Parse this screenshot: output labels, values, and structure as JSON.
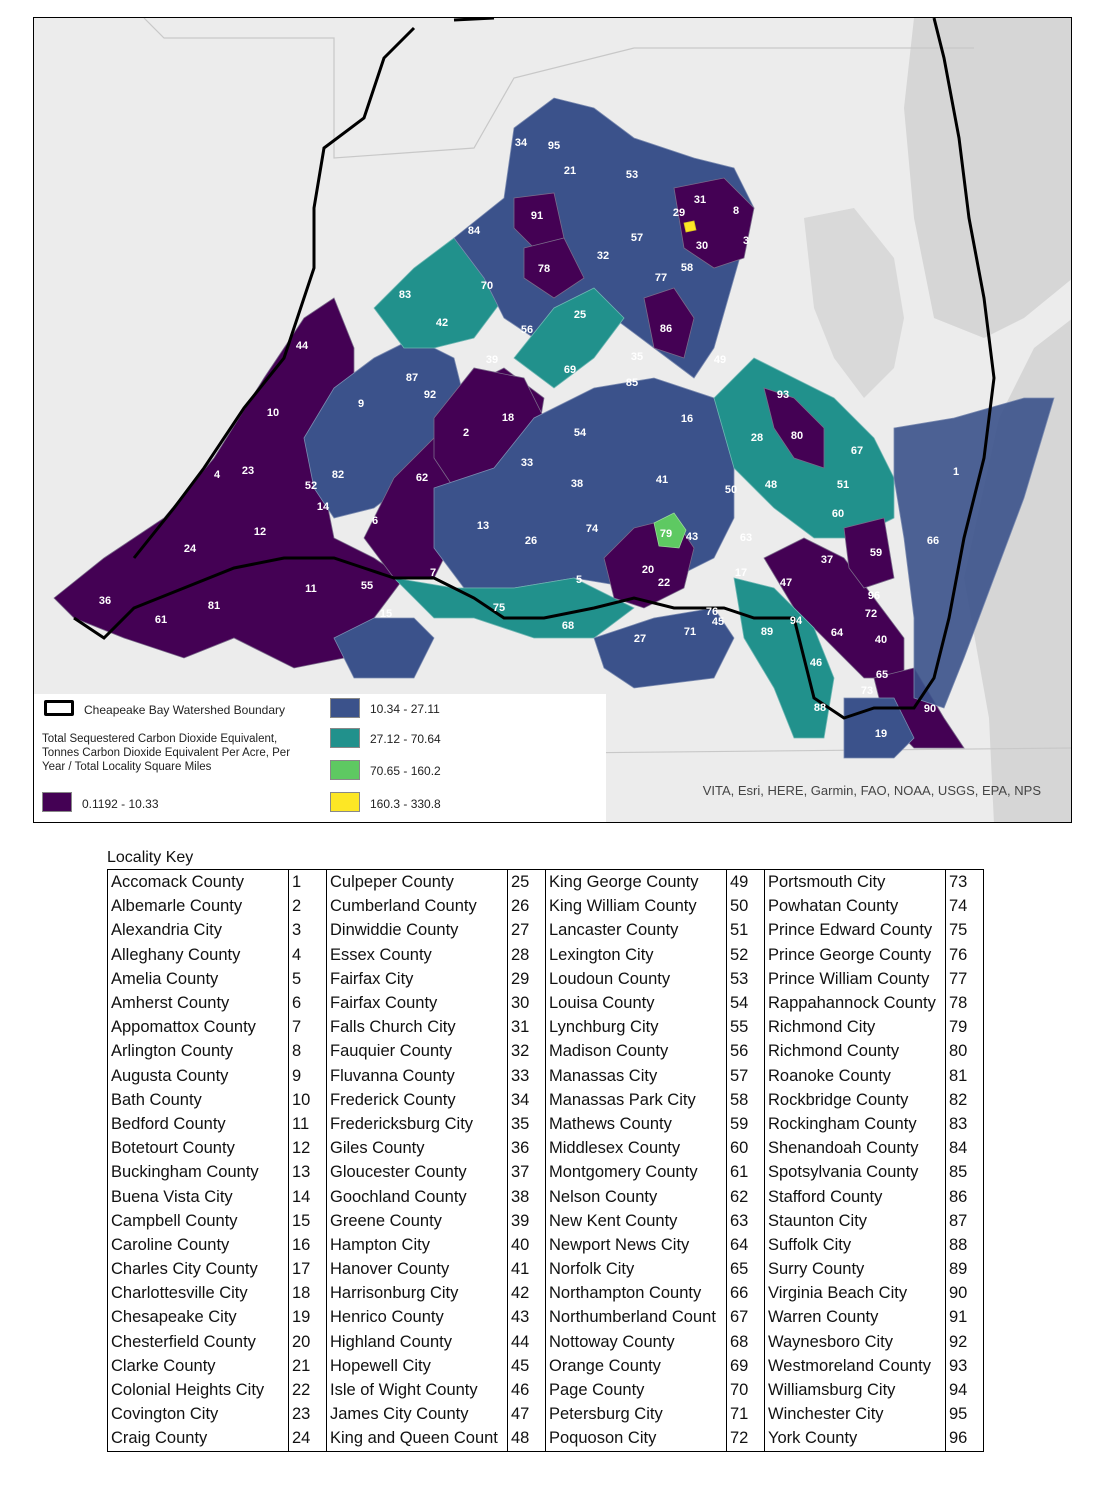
{
  "map": {
    "attribution": "VITA, Esri, HERE, Garmin, FAO, NOAA, USGS, EPA, NPS",
    "colors": {
      "class1": "#440154",
      "class2": "#3b528b",
      "class3": "#21918c",
      "class4": "#5ec962",
      "class5": "#fde725",
      "background": "#ececec",
      "water": "#d6d6d6",
      "boundary": "#000000"
    },
    "legend": {
      "boundary_label": "Cheapeake Bay Watershed Boundary",
      "measure_label": "Total Sequestered Carbon Dioxide Equivalent, Tonnes Carbon Dioxide Equivalent Per Acre, Per Year / Total Locality Square Miles",
      "classes": [
        {
          "range": "0.1192 - 10.33",
          "color": "#440154"
        },
        {
          "range": "10.34 - 27.11",
          "color": "#3b528b"
        },
        {
          "range": "27.12 - 70.64",
          "color": "#21918c"
        },
        {
          "range": "70.65 - 160.2",
          "color": "#5ec962"
        },
        {
          "range": "160.3 - 330.8",
          "color": "#fde725"
        }
      ]
    },
    "labels": [
      "34",
      "95",
      "21",
      "53",
      "31",
      "8",
      "29",
      "3",
      "30",
      "91",
      "84",
      "57",
      "32",
      "58",
      "77",
      "78",
      "70",
      "83",
      "42",
      "25",
      "56",
      "86",
      "44",
      "35",
      "39",
      "69",
      "49",
      "87",
      "85",
      "92",
      "9",
      "2",
      "18",
      "93",
      "10",
      "16",
      "54",
      "80",
      "28",
      "67",
      "33",
      "1",
      "4",
      "23",
      "62",
      "41",
      "48",
      "38",
      "50",
      "51",
      "52",
      "82",
      "14",
      "6",
      "13",
      "26",
      "74",
      "63",
      "60",
      "12",
      "79",
      "43",
      "59",
      "37",
      "66",
      "24",
      "7",
      "20",
      "22",
      "17",
      "47",
      "55",
      "5",
      "36",
      "11",
      "96",
      "76",
      "45",
      "81",
      "72",
      "15",
      "75",
      "61",
      "68",
      "94",
      "89",
      "64",
      "40",
      "27",
      "71",
      "46",
      "65",
      "73",
      "88",
      "90",
      "19"
    ]
  },
  "locality_key": {
    "title": "Locality Key",
    "entries": [
      {
        "name": "Accomack County",
        "num": "1"
      },
      {
        "name": "Albemarle County",
        "num": "2"
      },
      {
        "name": "Alexandria City",
        "num": "3"
      },
      {
        "name": "Alleghany County",
        "num": "4"
      },
      {
        "name": "Amelia County",
        "num": "5"
      },
      {
        "name": "Amherst County",
        "num": "6"
      },
      {
        "name": "Appomattox County",
        "num": "7"
      },
      {
        "name": "Arlington County",
        "num": "8"
      },
      {
        "name": "Augusta County",
        "num": "9"
      },
      {
        "name": "Bath County",
        "num": "10"
      },
      {
        "name": "Bedford County",
        "num": "11"
      },
      {
        "name": "Botetourt County",
        "num": "12"
      },
      {
        "name": "Buckingham County",
        "num": "13"
      },
      {
        "name": "Buena Vista City",
        "num": "14"
      },
      {
        "name": "Campbell County",
        "num": "15"
      },
      {
        "name": "Caroline County",
        "num": "16"
      },
      {
        "name": "Charles City County",
        "num": "17"
      },
      {
        "name": "Charlottesville City",
        "num": "18"
      },
      {
        "name": "Chesapeake City",
        "num": "19"
      },
      {
        "name": "Chesterfield County",
        "num": "20"
      },
      {
        "name": "Clarke County",
        "num": "21"
      },
      {
        "name": "Colonial Heights City",
        "num": "22"
      },
      {
        "name": "Covington City",
        "num": "23"
      },
      {
        "name": "Craig County",
        "num": "24"
      },
      {
        "name": "Culpeper County",
        "num": "25"
      },
      {
        "name": "Cumberland County",
        "num": "26"
      },
      {
        "name": "Dinwiddie County",
        "num": "27"
      },
      {
        "name": "Essex County",
        "num": "28"
      },
      {
        "name": "Fairfax City",
        "num": "29"
      },
      {
        "name": "Fairfax County",
        "num": "30"
      },
      {
        "name": "Falls Church City",
        "num": "31"
      },
      {
        "name": "Fauquier County",
        "num": "32"
      },
      {
        "name": "Fluvanna County",
        "num": "33"
      },
      {
        "name": "Frederick County",
        "num": "34"
      },
      {
        "name": "Fredericksburg City",
        "num": "35"
      },
      {
        "name": "Giles County",
        "num": "36"
      },
      {
        "name": "Gloucester County",
        "num": "37"
      },
      {
        "name": "Goochland County",
        "num": "38"
      },
      {
        "name": "Greene County",
        "num": "39"
      },
      {
        "name": "Hampton City",
        "num": "40"
      },
      {
        "name": "Hanover County",
        "num": "41"
      },
      {
        "name": "Harrisonburg City",
        "num": "42"
      },
      {
        "name": "Henrico County",
        "num": "43"
      },
      {
        "name": "Highland County",
        "num": "44"
      },
      {
        "name": "Hopewell City",
        "num": "45"
      },
      {
        "name": "Isle of Wight County",
        "num": "46"
      },
      {
        "name": "James City County",
        "num": "47"
      },
      {
        "name": "King and Queen Count",
        "num": "48"
      },
      {
        "name": "King George County",
        "num": "49"
      },
      {
        "name": "King William County",
        "num": "50"
      },
      {
        "name": "Lancaster County",
        "num": "51"
      },
      {
        "name": "Lexington City",
        "num": "52"
      },
      {
        "name": "Loudoun County",
        "num": "53"
      },
      {
        "name": "Louisa County",
        "num": "54"
      },
      {
        "name": "Lynchburg City",
        "num": "55"
      },
      {
        "name": "Madison County",
        "num": "56"
      },
      {
        "name": "Manassas City",
        "num": "57"
      },
      {
        "name": "Manassas Park City",
        "num": "58"
      },
      {
        "name": "Mathews County",
        "num": "59"
      },
      {
        "name": "Middlesex County",
        "num": "60"
      },
      {
        "name": "Montgomery County",
        "num": "61"
      },
      {
        "name": "Nelson County",
        "num": "62"
      },
      {
        "name": "New Kent County",
        "num": "63"
      },
      {
        "name": "Newport News City",
        "num": "64"
      },
      {
        "name": "Norfolk City",
        "num": "65"
      },
      {
        "name": "Northampton County",
        "num": "66"
      },
      {
        "name": "Northumberland Count",
        "num": "67"
      },
      {
        "name": "Nottoway County",
        "num": "68"
      },
      {
        "name": "Orange County",
        "num": "69"
      },
      {
        "name": "Page County",
        "num": "70"
      },
      {
        "name": "Petersburg City",
        "num": "71"
      },
      {
        "name": "Poquoson City",
        "num": "72"
      },
      {
        "name": "Portsmouth City",
        "num": "73"
      },
      {
        "name": "Powhatan County",
        "num": "74"
      },
      {
        "name": "Prince Edward County",
        "num": "75"
      },
      {
        "name": "Prince George County",
        "num": "76"
      },
      {
        "name": "Prince William County",
        "num": "77"
      },
      {
        "name": "Rappahannock County",
        "num": "78"
      },
      {
        "name": "Richmond City",
        "num": "79"
      },
      {
        "name": "Richmond County",
        "num": "80"
      },
      {
        "name": "Roanoke County",
        "num": "81"
      },
      {
        "name": "Rockbridge County",
        "num": "82"
      },
      {
        "name": "Rockingham County",
        "num": "83"
      },
      {
        "name": "Shenandoah County",
        "num": "84"
      },
      {
        "name": "Spotsylvania County",
        "num": "85"
      },
      {
        "name": "Stafford County",
        "num": "86"
      },
      {
        "name": "Staunton City",
        "num": "87"
      },
      {
        "name": "Suffolk City",
        "num": "88"
      },
      {
        "name": "Surry County",
        "num": "89"
      },
      {
        "name": "Virginia Beach City",
        "num": "90"
      },
      {
        "name": "Warren County",
        "num": "91"
      },
      {
        "name": "Waynesboro City",
        "num": "92"
      },
      {
        "name": "Westmoreland County",
        "num": "93"
      },
      {
        "name": "Williamsburg City",
        "num": "94"
      },
      {
        "name": "Winchester City",
        "num": "95"
      },
      {
        "name": "York County",
        "num": "96"
      }
    ]
  }
}
